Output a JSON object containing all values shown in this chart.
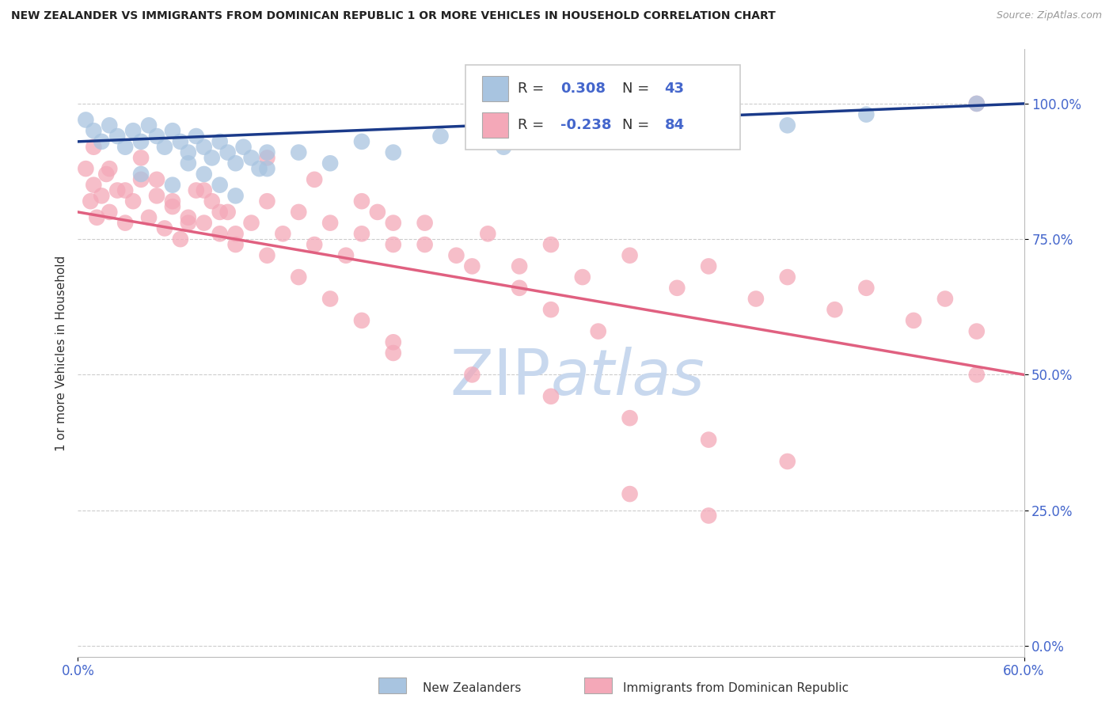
{
  "title": "NEW ZEALANDER VS IMMIGRANTS FROM DOMINICAN REPUBLIC 1 OR MORE VEHICLES IN HOUSEHOLD CORRELATION CHART",
  "source": "Source: ZipAtlas.com",
  "ylabel": "1 or more Vehicles in Household",
  "ytick_labels": [
    "0.0%",
    "25.0%",
    "50.0%",
    "75.0%",
    "100.0%"
  ],
  "ytick_values": [
    0.0,
    0.25,
    0.5,
    0.75,
    1.0
  ],
  "xlim": [
    0.0,
    0.6
  ],
  "ylim": [
    -0.02,
    1.1
  ],
  "blue_R": 0.308,
  "blue_N": 43,
  "pink_R": -0.238,
  "pink_N": 84,
  "legend_label_blue": "New Zealanders",
  "legend_label_pink": "Immigrants from Dominican Republic",
  "blue_color": "#a8c4e0",
  "pink_color": "#f4a8b8",
  "blue_line_color": "#1a3a8a",
  "pink_line_color": "#e06080",
  "title_color": "#222222",
  "source_color": "#999999",
  "watermark_color": "#c8d8ee",
  "grid_color": "#cccccc",
  "tick_color": "#4466cc",
  "blue_x": [
    0.005,
    0.01,
    0.015,
    0.02,
    0.025,
    0.03,
    0.035,
    0.04,
    0.045,
    0.05,
    0.055,
    0.06,
    0.065,
    0.07,
    0.075,
    0.08,
    0.085,
    0.09,
    0.095,
    0.1,
    0.105,
    0.11,
    0.115,
    0.12,
    0.04,
    0.06,
    0.07,
    0.08,
    0.09,
    0.1,
    0.12,
    0.14,
    0.16,
    0.18,
    0.2,
    0.23,
    0.27,
    0.3,
    0.35,
    0.4,
    0.45,
    0.5,
    0.57
  ],
  "blue_y": [
    0.97,
    0.95,
    0.93,
    0.96,
    0.94,
    0.92,
    0.95,
    0.93,
    0.96,
    0.94,
    0.92,
    0.95,
    0.93,
    0.91,
    0.94,
    0.92,
    0.9,
    0.93,
    0.91,
    0.89,
    0.92,
    0.9,
    0.88,
    0.91,
    0.87,
    0.85,
    0.89,
    0.87,
    0.85,
    0.83,
    0.88,
    0.91,
    0.89,
    0.93,
    0.91,
    0.94,
    0.92,
    0.96,
    0.95,
    0.97,
    0.96,
    0.98,
    1.0
  ],
  "pink_x": [
    0.005,
    0.008,
    0.01,
    0.012,
    0.015,
    0.018,
    0.02,
    0.025,
    0.03,
    0.035,
    0.04,
    0.045,
    0.05,
    0.055,
    0.06,
    0.065,
    0.07,
    0.075,
    0.08,
    0.085,
    0.09,
    0.095,
    0.1,
    0.11,
    0.12,
    0.13,
    0.14,
    0.15,
    0.16,
    0.17,
    0.18,
    0.19,
    0.2,
    0.22,
    0.24,
    0.26,
    0.28,
    0.3,
    0.32,
    0.35,
    0.38,
    0.4,
    0.43,
    0.45,
    0.48,
    0.5,
    0.53,
    0.55,
    0.57,
    0.01,
    0.02,
    0.03,
    0.04,
    0.05,
    0.06,
    0.07,
    0.08,
    0.09,
    0.1,
    0.12,
    0.14,
    0.16,
    0.18,
    0.2,
    0.12,
    0.15,
    0.18,
    0.2,
    0.22,
    0.25,
    0.28,
    0.3,
    0.33,
    0.2,
    0.25,
    0.3,
    0.35,
    0.4,
    0.45,
    0.35,
    0.4,
    0.57,
    0.57
  ],
  "pink_y": [
    0.88,
    0.82,
    0.85,
    0.79,
    0.83,
    0.87,
    0.8,
    0.84,
    0.78,
    0.82,
    0.86,
    0.79,
    0.83,
    0.77,
    0.81,
    0.75,
    0.79,
    0.84,
    0.78,
    0.82,
    0.76,
    0.8,
    0.74,
    0.78,
    0.82,
    0.76,
    0.8,
    0.74,
    0.78,
    0.72,
    0.76,
    0.8,
    0.74,
    0.78,
    0.72,
    0.76,
    0.7,
    0.74,
    0.68,
    0.72,
    0.66,
    0.7,
    0.64,
    0.68,
    0.62,
    0.66,
    0.6,
    0.64,
    0.58,
    0.92,
    0.88,
    0.84,
    0.9,
    0.86,
    0.82,
    0.78,
    0.84,
    0.8,
    0.76,
    0.72,
    0.68,
    0.64,
    0.6,
    0.56,
    0.9,
    0.86,
    0.82,
    0.78,
    0.74,
    0.7,
    0.66,
    0.62,
    0.58,
    0.54,
    0.5,
    0.46,
    0.42,
    0.38,
    0.34,
    0.28,
    0.24,
    1.0,
    0.5
  ]
}
